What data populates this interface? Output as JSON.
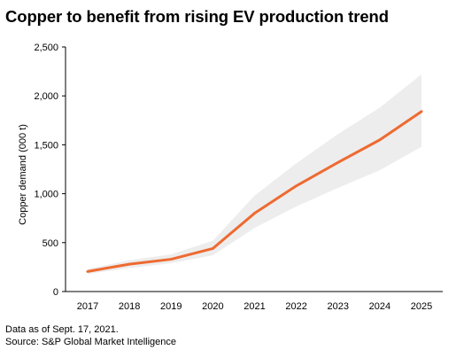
{
  "title": "Copper to benefit from rising EV production trend",
  "footer": {
    "note": "Data as of Sept. 17, 2021.",
    "source": "Source: S&P Global Market Intelligence"
  },
  "colors": {
    "line": "#ee6a31",
    "band": "#ededed",
    "axis": "#000000"
  },
  "chart_data": {
    "type": "line",
    "title": "Copper to benefit from rising EV production trend",
    "xlabel": "",
    "ylabel": "Copper demand (000 t)",
    "categories": [
      "2017",
      "2018",
      "2019",
      "2020",
      "2021",
      "2022",
      "2023",
      "2024",
      "2025"
    ],
    "series": [
      {
        "values": [
          205,
          280,
          330,
          440,
          800,
          1080,
          1320,
          1550,
          1840
        ]
      }
    ],
    "band": {
      "lower": [
        180,
        240,
        290,
        370,
        650,
        870,
        1060,
        1240,
        1480
      ],
      "upper": [
        230,
        320,
        380,
        520,
        980,
        1310,
        1610,
        1880,
        2220
      ]
    },
    "yticks": [
      0,
      500,
      1000,
      1500,
      2000,
      2500
    ],
    "ytick_labels": [
      "0",
      "500",
      "1,000",
      "1,500",
      "2,000",
      "2,500"
    ],
    "ylim": [
      0,
      2500
    ],
    "grid": false,
    "legend": "none"
  }
}
